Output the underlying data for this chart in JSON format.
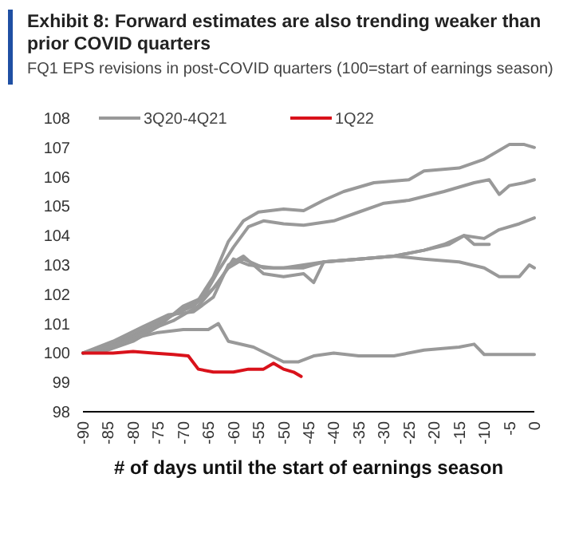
{
  "chart_data": {
    "type": "line",
    "title": "Exhibit 8: Forward estimates are also trending weaker than prior COVID quarters",
    "subtitle": "FQ1 EPS revisions in post-COVID quarters (100=start of earnings season)",
    "xlabel": "# of days until the start of earnings season",
    "xlim": [
      -90,
      0
    ],
    "xticks": [
      -90,
      -85,
      -80,
      -75,
      -70,
      -65,
      -60,
      -55,
      -50,
      -45,
      -40,
      -35,
      -30,
      -25,
      -20,
      -15,
      -10,
      -5,
      0
    ],
    "ylim": [
      98,
      108
    ],
    "yticks": [
      98,
      99,
      100,
      101,
      102,
      103,
      104,
      105,
      106,
      107,
      108
    ],
    "grid": false,
    "legend": "top",
    "marker": "none",
    "line_style": "solid",
    "series": [
      {
        "name": "3Q20-4Q21",
        "color": "#999999",
        "x": [
          -90,
          -85,
          -80,
          -75,
          -70,
          -67,
          -64,
          -61,
          -58,
          -55,
          -50,
          -46,
          -42,
          -38,
          -32,
          -25,
          -22,
          -15,
          -10,
          -5,
          -2,
          0
        ],
        "values": [
          100,
          100.2,
          100.6,
          101,
          101.5,
          101.8,
          102.6,
          103.8,
          104.5,
          104.8,
          104.9,
          104.85,
          105.2,
          105.5,
          105.8,
          105.9,
          106.2,
          106.3,
          106.6,
          107.1,
          107.1,
          107.0
        ]
      },
      {
        "color": "#999999",
        "x": [
          -90,
          -85,
          -80,
          -75,
          -70,
          -66,
          -63,
          -60,
          -57,
          -54,
          -50,
          -46,
          -40,
          -35,
          -30,
          -25,
          -18,
          -12,
          -9,
          -7,
          -5,
          -2,
          0
        ],
        "values": [
          100,
          100.1,
          100.4,
          100.9,
          101.6,
          101.9,
          102.8,
          103.6,
          104.3,
          104.5,
          104.4,
          104.35,
          104.5,
          104.8,
          105.1,
          105.2,
          105.5,
          105.8,
          105.9,
          105.4,
          105.7,
          105.8,
          105.9
        ]
      },
      {
        "color": "#999999",
        "x": [
          -90,
          -84,
          -78,
          -72,
          -68,
          -64,
          -61,
          -58,
          -54,
          -50,
          -46,
          -42,
          -35,
          -28,
          -22,
          -18,
          -14,
          -10,
          -7,
          -3,
          0
        ],
        "values": [
          100,
          100.3,
          100.8,
          101.3,
          101.6,
          102.2,
          102.9,
          103.2,
          102.9,
          102.9,
          103.0,
          103.1,
          103.2,
          103.3,
          103.5,
          103.7,
          104.0,
          103.9,
          104.2,
          104.4,
          104.6
        ]
      },
      {
        "color": "#999999",
        "x": [
          -90,
          -85,
          -78,
          -72,
          -67,
          -63,
          -60,
          -57,
          -52,
          -46,
          -42,
          -35,
          -28,
          -22,
          -15,
          -10,
          -7,
          -3,
          -1,
          0
        ],
        "values": [
          100,
          100.2,
          100.7,
          101.1,
          101.6,
          102.4,
          103.2,
          103.0,
          102.9,
          102.9,
          103.1,
          103.2,
          103.3,
          103.2,
          103.1,
          102.9,
          102.6,
          102.6,
          103.0,
          102.9
        ]
      },
      {
        "color": "#999999",
        "x": [
          -90,
          -84,
          -78,
          -73,
          -68,
          -64,
          -61,
          -58,
          -54,
          -50,
          -46,
          -44,
          -42,
          -35,
          -28,
          -22,
          -17,
          -14,
          -12,
          -9
        ],
        "values": [
          100,
          100.4,
          100.9,
          101.3,
          101.4,
          101.9,
          103.0,
          103.3,
          102.7,
          102.6,
          102.7,
          102.4,
          103.1,
          103.2,
          103.3,
          103.5,
          103.7,
          104.0,
          103.7,
          103.7
        ]
      },
      {
        "color": "#999999",
        "x": [
          -90,
          -85,
          -80,
          -75,
          -70,
          -65,
          -63,
          -61,
          -56,
          -50,
          -47,
          -44,
          -40,
          -35,
          -28,
          -22,
          -15,
          -12,
          -10,
          0
        ],
        "values": [
          100,
          100.2,
          100.5,
          100.7,
          100.8,
          100.8,
          101.0,
          100.4,
          100.2,
          99.7,
          99.7,
          99.9,
          100.0,
          99.9,
          99.9,
          100.1,
          100.2,
          100.3,
          99.95,
          99.95
        ]
      },
      {
        "name": "1Q22",
        "color": "#d9121b",
        "x": [
          -90,
          -84,
          -80,
          -76,
          -72,
          -69,
          -67,
          -64,
          -60,
          -57,
          -54,
          -52,
          -50,
          -48,
          -46.5
        ],
        "values": [
          100,
          100,
          100.05,
          100,
          99.95,
          99.9,
          99.45,
          99.35,
          99.35,
          99.45,
          99.45,
          99.65,
          99.45,
          99.35,
          99.2
        ]
      }
    ]
  }
}
